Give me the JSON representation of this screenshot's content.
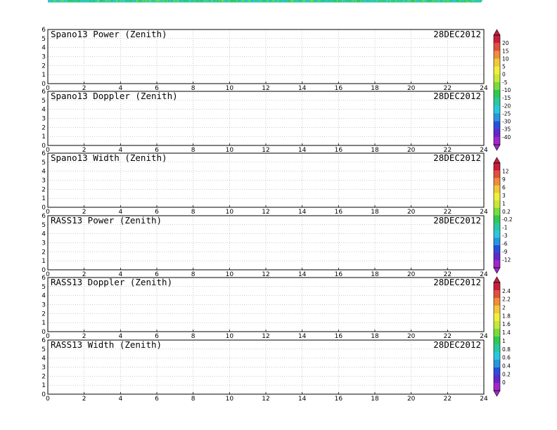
{
  "chart_data": [
    {
      "type": "heatmap",
      "title": "Spano13 Power (Zenith)",
      "date": "28DEC2012",
      "xlim": [
        0,
        24
      ],
      "ylim": [
        0,
        6
      ],
      "x_ticks": [
        "0",
        "2",
        "4",
        "6",
        "8",
        "10",
        "12",
        "14",
        "16",
        "18",
        "20",
        "22",
        "24"
      ],
      "y_ticks": [
        "0",
        "1",
        "2",
        "3",
        "4",
        "5",
        "6"
      ],
      "grid": true,
      "kind": "spano-power",
      "colorbar": {
        "ticks": [
          "20",
          "15",
          "10",
          "5",
          "0",
          "-5",
          "-10",
          "-15",
          "-20",
          "-25",
          "-30",
          "-35",
          "-40"
        ],
        "colors": [
          "#c81e3c",
          "#e0503c",
          "#f08c3c",
          "#f0c83c",
          "#f0f03c",
          "#c8e63c",
          "#78dc3c",
          "#32c850",
          "#28c8a0",
          "#28c8dc",
          "#2896dc",
          "#2850dc",
          "#6428c8",
          "#a028c8"
        ]
      }
    },
    {
      "type": "heatmap",
      "title": "Spano13 Doppler (Zenith)",
      "date": "28DEC2012",
      "xlim": [
        0,
        24
      ],
      "ylim": [
        0,
        6
      ],
      "x_ticks": [
        "0",
        "2",
        "4",
        "6",
        "8",
        "10",
        "12",
        "14",
        "16",
        "18",
        "20",
        "22",
        "24"
      ],
      "y_ticks": [
        "0",
        "1",
        "2",
        "3",
        "4",
        "5",
        "6"
      ],
      "grid": true,
      "kind": "spano-doppler"
    },
    {
      "type": "heatmap",
      "title": "Spano13 Width (Zenith)",
      "date": "28DEC2012",
      "xlim": [
        0,
        24
      ],
      "ylim": [
        0,
        6
      ],
      "x_ticks": [
        "0",
        "2",
        "4",
        "6",
        "8",
        "10",
        "12",
        "14",
        "16",
        "18",
        "20",
        "22",
        "24"
      ],
      "y_ticks": [
        "0",
        "1",
        "2",
        "3",
        "4",
        "5",
        "6"
      ],
      "grid": true,
      "kind": "spano-width",
      "colorbar": {
        "ticks": [
          "12",
          "9",
          "6",
          "3",
          "1",
          "0.2",
          "-0.2",
          "-1",
          "-3",
          "-6",
          "-9",
          "-12"
        ],
        "colors": [
          "#c81e3c",
          "#e0503c",
          "#f08c3c",
          "#f0c83c",
          "#f0f03c",
          "#c8e63c",
          "#78dc3c",
          "#32c850",
          "#28c8a0",
          "#28c8dc",
          "#2896dc",
          "#2850dc",
          "#6428c8",
          "#a028c8"
        ]
      }
    },
    {
      "type": "heatmap",
      "title": "RASS13 Power (Zenith)",
      "date": "28DEC2012",
      "xlim": [
        0,
        24
      ],
      "ylim": [
        0,
        6
      ],
      "x_ticks": [
        "0",
        "2",
        "4",
        "6",
        "8",
        "10",
        "12",
        "14",
        "16",
        "18",
        "20",
        "22",
        "24"
      ],
      "y_ticks": [
        "0",
        "1",
        "2",
        "3",
        "4",
        "5",
        "6"
      ],
      "grid": true,
      "kind": "rass-power"
    },
    {
      "type": "heatmap",
      "title": "RASS13 Doppler (Zenith)",
      "date": "28DEC2012",
      "xlim": [
        0,
        24
      ],
      "ylim": [
        0,
        6
      ],
      "x_ticks": [
        "0",
        "2",
        "4",
        "6",
        "8",
        "10",
        "12",
        "14",
        "16",
        "18",
        "20",
        "22",
        "24"
      ],
      "y_ticks": [
        "0",
        "1",
        "2",
        "3",
        "4",
        "5",
        "6"
      ],
      "grid": true,
      "kind": "rass-doppler",
      "colorbar": {
        "ticks": [
          "2.4",
          "2.2",
          "2",
          "1.8",
          "1.6",
          "1.4",
          "1",
          "0.8",
          "0.6",
          "0.4",
          "0.2",
          "0"
        ],
        "colors": [
          "#c81e3c",
          "#e0503c",
          "#f08c3c",
          "#f0c83c",
          "#f0f03c",
          "#c8e63c",
          "#78dc3c",
          "#32c850",
          "#28c8a0",
          "#28c8dc",
          "#2896dc",
          "#2850dc",
          "#6428c8",
          "#a028c8"
        ]
      }
    },
    {
      "type": "heatmap",
      "title": "RASS13 Width (Zenith)",
      "date": "28DEC2012",
      "xlim": [
        0,
        24
      ],
      "ylim": [
        0,
        6
      ],
      "x_ticks": [
        "0",
        "2",
        "4",
        "6",
        "8",
        "10",
        "12",
        "14",
        "16",
        "18",
        "20",
        "22",
        "24"
      ],
      "y_ticks": [
        "0",
        "1",
        "2",
        "3",
        "4",
        "5",
        "6"
      ],
      "grid": true,
      "kind": "rass-width"
    }
  ]
}
